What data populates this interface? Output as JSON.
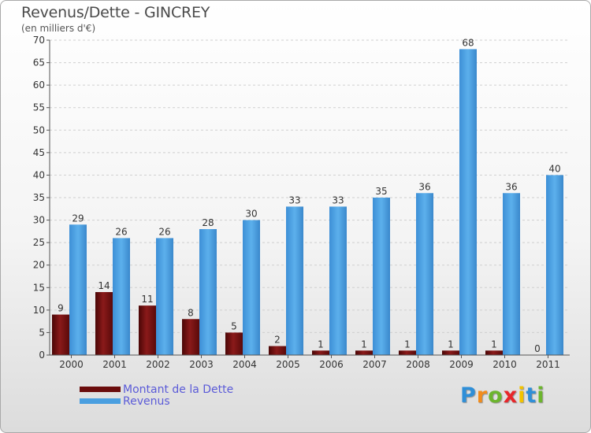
{
  "title": "Revenus/Dette - GINCREY",
  "subtitle": "(en milliers d'€)",
  "chart_data": {
    "type": "bar",
    "title": "Revenus/Dette - GINCREY",
    "ylabel": "(en milliers d'€)",
    "ylim": [
      0,
      70
    ],
    "yticks": [
      0,
      5,
      10,
      15,
      20,
      25,
      30,
      35,
      40,
      45,
      50,
      55,
      60,
      65,
      70
    ],
    "grid": true,
    "legend_position": "bottom-left",
    "categories": [
      "2000",
      "2001",
      "2002",
      "2003",
      "2004",
      "2005",
      "2006",
      "2007",
      "2008",
      "2009",
      "2010",
      "2011"
    ],
    "series": [
      {
        "name": "Montant de la Dette",
        "color": "#7a1010",
        "values": [
          9,
          14,
          11,
          8,
          5,
          2,
          1,
          1,
          1,
          1,
          1,
          0
        ]
      },
      {
        "name": "Revenus",
        "color": "#4a9fe0",
        "values": [
          29,
          26,
          26,
          28,
          30,
          33,
          33,
          35,
          36,
          68,
          36,
          40
        ]
      }
    ]
  },
  "logo": [
    "P",
    "r",
    "o",
    "x",
    "i",
    "t",
    "i"
  ],
  "logo_colors": [
    "#2f8fd8",
    "#f28c1c",
    "#6cb52d",
    "#e8262a",
    "#f2c300",
    "#2f8fd8",
    "#6cb52d"
  ]
}
